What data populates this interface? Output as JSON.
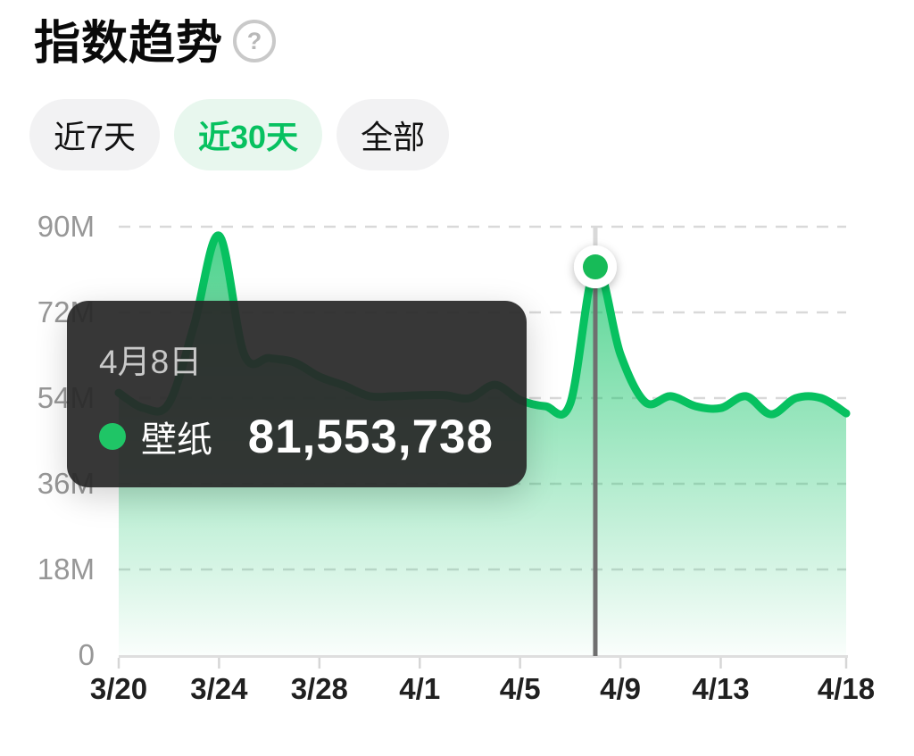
{
  "header": {
    "title": "指数趋势",
    "help_glyph": "?"
  },
  "tabs": [
    {
      "label": "近7天",
      "active": false
    },
    {
      "label": "近30天",
      "active": true
    },
    {
      "label": "全部",
      "active": false
    }
  ],
  "tooltip": {
    "date": "4月8日",
    "series": "壁纸",
    "value": "81,553,738"
  },
  "colors": {
    "accent": "#07C160",
    "tab_active_bg": "#e8f7ee",
    "tab_inactive_bg": "#f2f2f3",
    "grid_line": "#d9d9d9",
    "axis_line": "#dedede",
    "tick": "#d6d6d6",
    "cursor_dark": "#6f6f6f",
    "cursor_light": "#d9d9d9",
    "y_label": "#979797",
    "x_label": "#202020",
    "tooltip_bg": "rgba(40,40,40,0.93)"
  },
  "chart_data": {
    "type": "area",
    "title": "指数趋势",
    "series_name": "壁纸",
    "x": [
      "3/20",
      "3/21",
      "3/22",
      "3/23",
      "3/24",
      "3/25",
      "3/26",
      "3/27",
      "3/28",
      "3/29",
      "3/30",
      "3/31",
      "4/1",
      "4/2",
      "4/3",
      "4/4",
      "4/5",
      "4/6",
      "4/7",
      "4/8",
      "4/9",
      "4/10",
      "4/11",
      "4/12",
      "4/13",
      "4/14",
      "4/15",
      "4/16",
      "4/17",
      "4/18"
    ],
    "values": [
      55100000,
      51900000,
      52900000,
      69200000,
      88100000,
      63200000,
      62400000,
      61500000,
      58500000,
      56600000,
      54400000,
      54400000,
      54600000,
      54600000,
      54000000,
      56800000,
      53600000,
      52300000,
      52900000,
      81553738,
      63200000,
      53100000,
      54400000,
      52300000,
      51900000,
      54400000,
      50600000,
      54000000,
      54000000,
      50800000
    ],
    "ylim": [
      0,
      90000000
    ],
    "y_ticks": [
      {
        "label": "90M",
        "value": 90000000
      },
      {
        "label": "72M",
        "value": 72000000
      },
      {
        "label": "54M",
        "value": 54000000
      },
      {
        "label": "36M",
        "value": 36000000
      },
      {
        "label": "18M",
        "value": 18000000
      },
      {
        "label": "0",
        "value": 0
      }
    ],
    "x_tick_indices": [
      0,
      4,
      8,
      12,
      16,
      20,
      24,
      29
    ],
    "x_tick_labels": [
      "3/20",
      "3/24",
      "3/28",
      "4/1",
      "4/5",
      "4/9",
      "4/13",
      "4/18"
    ],
    "grid": "horizontal-dashed",
    "legend_position": "none",
    "highlight": {
      "index": 19,
      "date": "4月8日",
      "value": 81553738,
      "value_formatted": "81,553,738"
    }
  }
}
